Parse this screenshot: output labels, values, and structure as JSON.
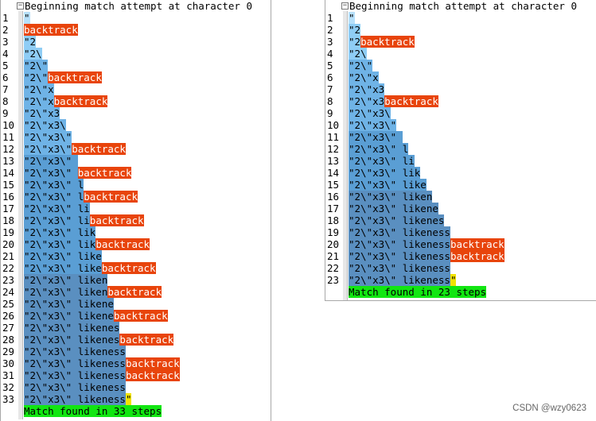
{
  "colors": {
    "backtrack": "#e8440b",
    "match_marker": "#f2e300",
    "success": "#12e612",
    "shade_levels": [
      "#b7e0fa",
      "#8fcdf5",
      "#6fb3e6",
      "#5a9ed4",
      "#5a8fc0"
    ]
  },
  "panels": [
    {
      "id": "left",
      "header": "Beginning match attempt at character 0",
      "footer": "Match found in 33 steps",
      "rows": [
        {
          "n": "1",
          "t": "\"",
          "b": ""
        },
        {
          "n": "2",
          "t": "",
          "b": "backtrack"
        },
        {
          "n": "3",
          "t": "\"2",
          "b": ""
        },
        {
          "n": "4",
          "t": "\"2\\",
          "b": ""
        },
        {
          "n": "5",
          "t": "\"2\\\"",
          "b": ""
        },
        {
          "n": "6",
          "t": "\"2\\\"",
          "b": "backtrack"
        },
        {
          "n": "7",
          "t": "\"2\\\"x",
          "b": ""
        },
        {
          "n": "8",
          "t": "\"2\\\"x",
          "b": "backtrack"
        },
        {
          "n": "9",
          "t": "\"2\\\"x3",
          "b": ""
        },
        {
          "n": "10",
          "t": "\"2\\\"x3\\",
          "b": ""
        },
        {
          "n": "11",
          "t": "\"2\\\"x3\\\"",
          "b": ""
        },
        {
          "n": "12",
          "t": "\"2\\\"x3\\\"",
          "b": "backtrack"
        },
        {
          "n": "13",
          "t": "\"2\\\"x3\\\" ",
          "b": ""
        },
        {
          "n": "14",
          "t": "\"2\\\"x3\\\" ",
          "b": "backtrack"
        },
        {
          "n": "15",
          "t": "\"2\\\"x3\\\" l",
          "b": ""
        },
        {
          "n": "16",
          "t": "\"2\\\"x3\\\" l",
          "b": "backtrack"
        },
        {
          "n": "17",
          "t": "\"2\\\"x3\\\" li",
          "b": ""
        },
        {
          "n": "18",
          "t": "\"2\\\"x3\\\" li",
          "b": "backtrack"
        },
        {
          "n": "19",
          "t": "\"2\\\"x3\\\" lik",
          "b": ""
        },
        {
          "n": "20",
          "t": "\"2\\\"x3\\\" lik",
          "b": "backtrack"
        },
        {
          "n": "21",
          "t": "\"2\\\"x3\\\" like",
          "b": ""
        },
        {
          "n": "22",
          "t": "\"2\\\"x3\\\" like",
          "b": "backtrack"
        },
        {
          "n": "23",
          "t": "\"2\\\"x3\\\" liken",
          "b": ""
        },
        {
          "n": "24",
          "t": "\"2\\\"x3\\\" liken",
          "b": "backtrack"
        },
        {
          "n": "25",
          "t": "\"2\\\"x3\\\" likene",
          "b": ""
        },
        {
          "n": "26",
          "t": "\"2\\\"x3\\\" likene",
          "b": "backtrack"
        },
        {
          "n": "27",
          "t": "\"2\\\"x3\\\" likenes",
          "b": ""
        },
        {
          "n": "28",
          "t": "\"2\\\"x3\\\" likenes",
          "b": "backtrack"
        },
        {
          "n": "29",
          "t": "\"2\\\"x3\\\" likeness",
          "b": ""
        },
        {
          "n": "30",
          "t": "\"2\\\"x3\\\" likeness",
          "b": "backtrack"
        },
        {
          "n": "31",
          "t": "\"2\\\"x3\\\" likeness",
          "b": "backtrack"
        },
        {
          "n": "32",
          "t": "\"2\\\"x3\\\" likeness",
          "b": ""
        },
        {
          "n": "33",
          "t": "\"2\\\"x3\\\" likeness",
          "b": "",
          "m": "\""
        }
      ]
    },
    {
      "id": "right",
      "header": "Beginning match attempt at character 0",
      "footer": "Match found in 23 steps",
      "rows": [
        {
          "n": "1",
          "t": "\"",
          "b": ""
        },
        {
          "n": "2",
          "t": "\"2",
          "b": ""
        },
        {
          "n": "3",
          "t": "\"2",
          "b": "backtrack"
        },
        {
          "n": "4",
          "t": "\"2\\",
          "b": ""
        },
        {
          "n": "5",
          "t": "\"2\\\"",
          "b": ""
        },
        {
          "n": "6",
          "t": "\"2\\\"x",
          "b": ""
        },
        {
          "n": "7",
          "t": "\"2\\\"x3",
          "b": ""
        },
        {
          "n": "8",
          "t": "\"2\\\"x3",
          "b": "backtrack"
        },
        {
          "n": "9",
          "t": "\"2\\\"x3\\",
          "b": ""
        },
        {
          "n": "10",
          "t": "\"2\\\"x3\\\"",
          "b": ""
        },
        {
          "n": "11",
          "t": "\"2\\\"x3\\\" ",
          "b": ""
        },
        {
          "n": "12",
          "t": "\"2\\\"x3\\\" l",
          "b": ""
        },
        {
          "n": "13",
          "t": "\"2\\\"x3\\\" li",
          "b": ""
        },
        {
          "n": "14",
          "t": "\"2\\\"x3\\\" lik",
          "b": ""
        },
        {
          "n": "15",
          "t": "\"2\\\"x3\\\" like",
          "b": ""
        },
        {
          "n": "16",
          "t": "\"2\\\"x3\\\" liken",
          "b": ""
        },
        {
          "n": "17",
          "t": "\"2\\\"x3\\\" likene",
          "b": ""
        },
        {
          "n": "18",
          "t": "\"2\\\"x3\\\" likenes",
          "b": ""
        },
        {
          "n": "19",
          "t": "\"2\\\"x3\\\" likeness",
          "b": ""
        },
        {
          "n": "20",
          "t": "\"2\\\"x3\\\" likeness",
          "b": "backtrack"
        },
        {
          "n": "21",
          "t": "\"2\\\"x3\\\" likeness",
          "b": "backtrack"
        },
        {
          "n": "22",
          "t": "\"2\\\"x3\\\" likeness",
          "b": ""
        },
        {
          "n": "23",
          "t": "\"2\\\"x3\\\" likeness",
          "b": "",
          "m": "\""
        }
      ]
    }
  ],
  "watermark": "CSDN @wzy0623"
}
